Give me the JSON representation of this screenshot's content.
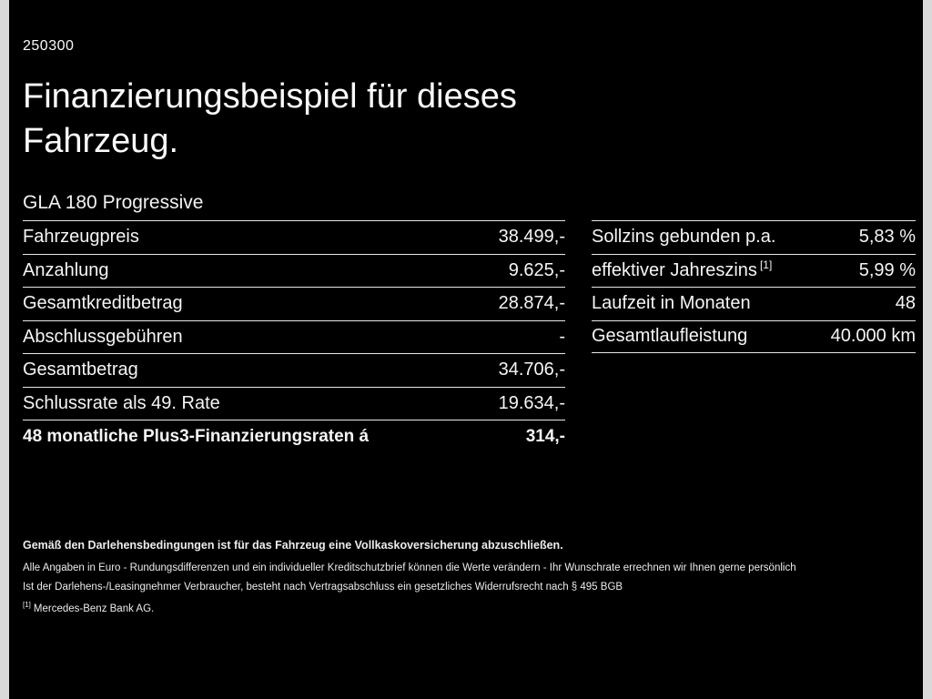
{
  "page": {
    "code": "250300",
    "title_line1": "Finanzierungsbeispiel für dieses",
    "title_line2": "Fahrzeug.",
    "model": "GLA 180 Progressive"
  },
  "finance_table": {
    "rows": [
      {
        "label": "Fahrzeugpreis",
        "value": "38.499,-"
      },
      {
        "label": "Anzahlung",
        "value": "9.625,-"
      },
      {
        "label": "Gesamtkreditbetrag",
        "value": "28.874,-"
      },
      {
        "label": "Abschlussgebühren",
        "value": "-"
      },
      {
        "label": "Gesamtbetrag",
        "value": "34.706,-"
      },
      {
        "label": "Schlussrate als 49. Rate",
        "value": "19.634,-"
      },
      {
        "label": "48 monatliche Plus3-Finanzierungsraten á",
        "value": "314,-"
      }
    ]
  },
  "conditions_table": {
    "rows": [
      {
        "label": "Sollzins gebunden p.a.",
        "value": "5,83 %"
      },
      {
        "label": "effektiver Jahreszins",
        "sup": "[1]",
        "value": "5,99 %"
      },
      {
        "label": "Laufzeit in Monaten",
        "value": "48"
      },
      {
        "label": "Gesamtlaufleistung",
        "value": "40.000 km"
      }
    ]
  },
  "footnotes": {
    "line1": "Gemäß den Darlehensbedingungen ist für das Fahrzeug eine Vollkaskoversicherung abzuschließen.",
    "line2": "Alle Angaben in Euro - Rundungsdifferenzen und ein individueller Kreditschutzbrief können die Werte verändern - Ihr Wunschrate errechnen wir Ihnen gerne persönlich",
    "line3": "Ist der Darlehens-/Leasingnehmer Verbraucher, besteht nach Vertragsabschluss ein gesetzliches Widerrufsrecht nach § 495 BGB",
    "marker": "[1]",
    "marker_text": "Mercedes-Benz Bank AG."
  },
  "colors": {
    "background": "#000000",
    "text": "#f5f5f5",
    "divider": "#e8e8e8",
    "edge_strip": "#d9d9d9"
  }
}
